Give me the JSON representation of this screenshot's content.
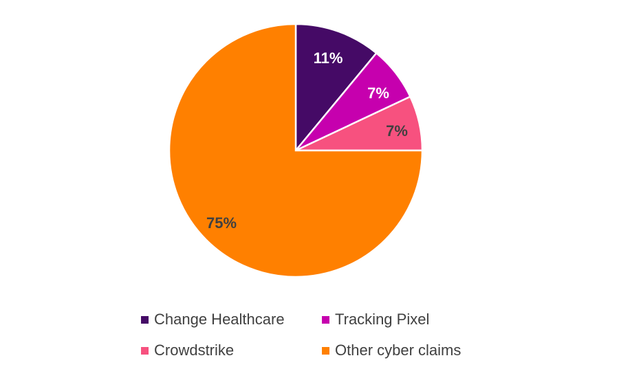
{
  "chart_data": {
    "type": "pie",
    "title": "",
    "categories": [
      "Change Healthcare",
      "Tracking Pixel",
      "Crowdstrike",
      "Other cyber claims"
    ],
    "values": [
      11,
      7,
      7,
      75
    ],
    "labels": [
      "11%",
      "7%",
      "7%",
      "75%"
    ],
    "colors": [
      "#450a66",
      "#c600ae",
      "#f7517f",
      "#ff8000"
    ],
    "label_colors": [
      "#ffffff",
      "#ffffff",
      "#404040",
      "#404040"
    ],
    "legend_position": "bottom",
    "start_angle": "12 o'clock, clockwise"
  },
  "legend": [
    {
      "label": "Change Healthcare",
      "color": "#450a66"
    },
    {
      "label": "Tracking Pixel",
      "color": "#c600ae"
    },
    {
      "label": "Crowdstrike",
      "color": "#f7517f"
    },
    {
      "label": "Other cyber claims",
      "color": "#ff8000"
    }
  ]
}
